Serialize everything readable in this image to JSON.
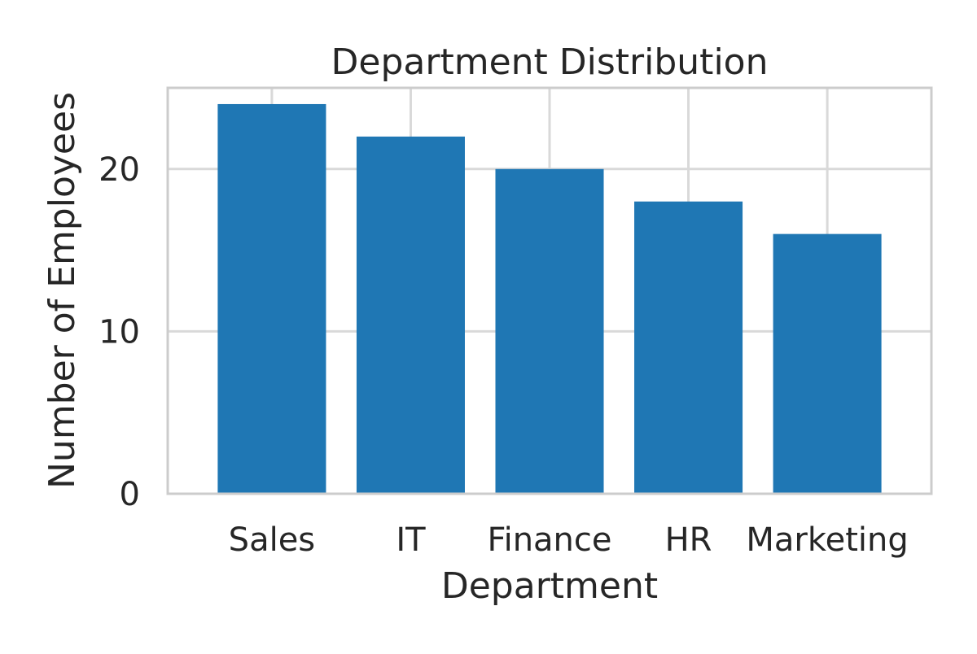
{
  "chart_data": {
    "type": "bar",
    "title": "Department Distribution",
    "xlabel": "Department",
    "ylabel": "Number of Employees",
    "categories": [
      "Sales",
      "IT",
      "Finance",
      "HR",
      "Marketing"
    ],
    "values": [
      24,
      22,
      20,
      18,
      16
    ],
    "ylim": [
      0,
      25
    ],
    "yticks": [
      0,
      10,
      20
    ],
    "grid": true,
    "legend": "none",
    "colors": {
      "bar": "#1f77b4",
      "grid": "#d9d9d9",
      "frame": "#cccccc",
      "text": "#262626"
    }
  }
}
